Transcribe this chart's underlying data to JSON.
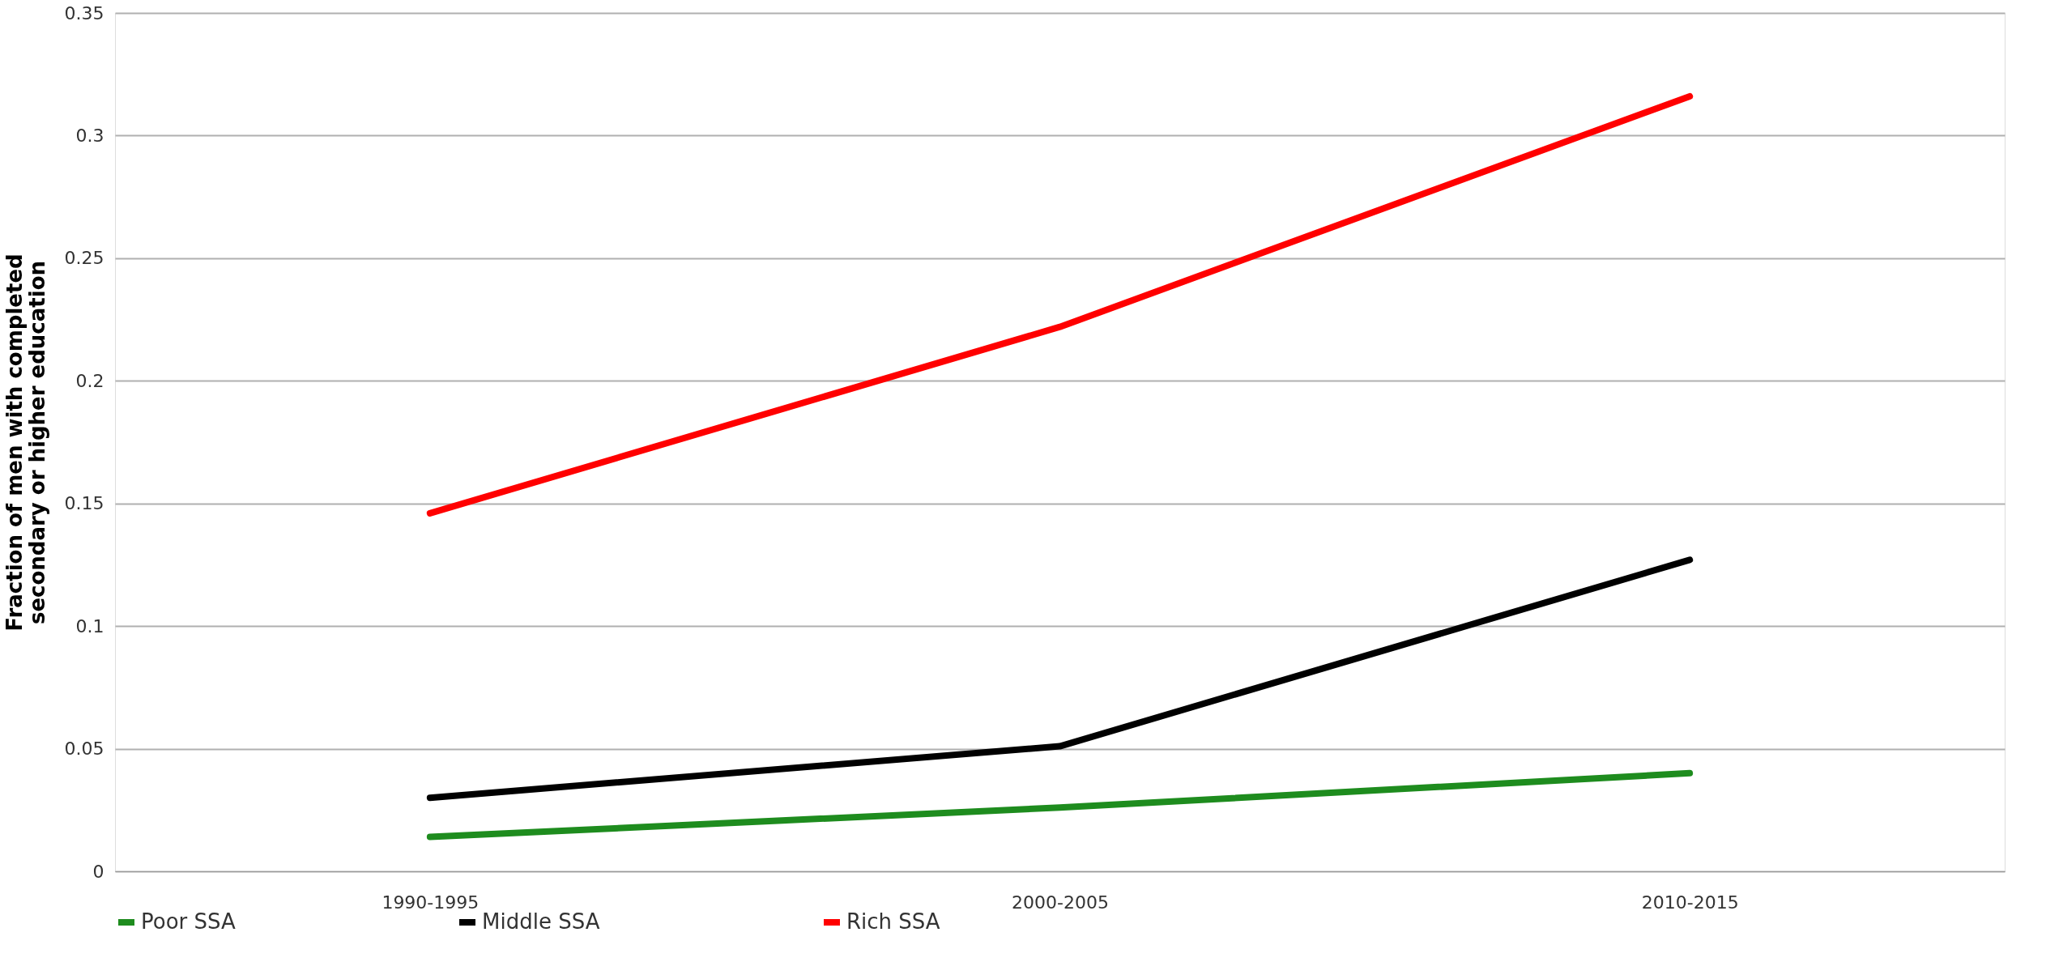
{
  "chart_data": {
    "type": "line",
    "ylabel": "Fraction of men with completed secondary or higher education",
    "categories": [
      "1990-1995",
      "2000-2005",
      "2010-2015"
    ],
    "series": [
      {
        "name": "Poor SSA",
        "color": "#1e8c1e",
        "values": [
          0.014,
          0.026,
          0.04
        ]
      },
      {
        "name": "Middle SSA",
        "color": "#000000",
        "values": [
          0.03,
          0.051,
          0.127
        ]
      },
      {
        "name": "Rich SSA",
        "color": "#ff0000",
        "values": [
          0.146,
          0.222,
          0.316
        ]
      }
    ],
    "ylim": [
      0,
      0.35
    ],
    "yticks": [
      0,
      0.05,
      0.1,
      0.15,
      0.2,
      0.25,
      0.3,
      0.35
    ],
    "grid": "y",
    "legend": "bottom",
    "marker": "none",
    "line_style": "solid"
  }
}
